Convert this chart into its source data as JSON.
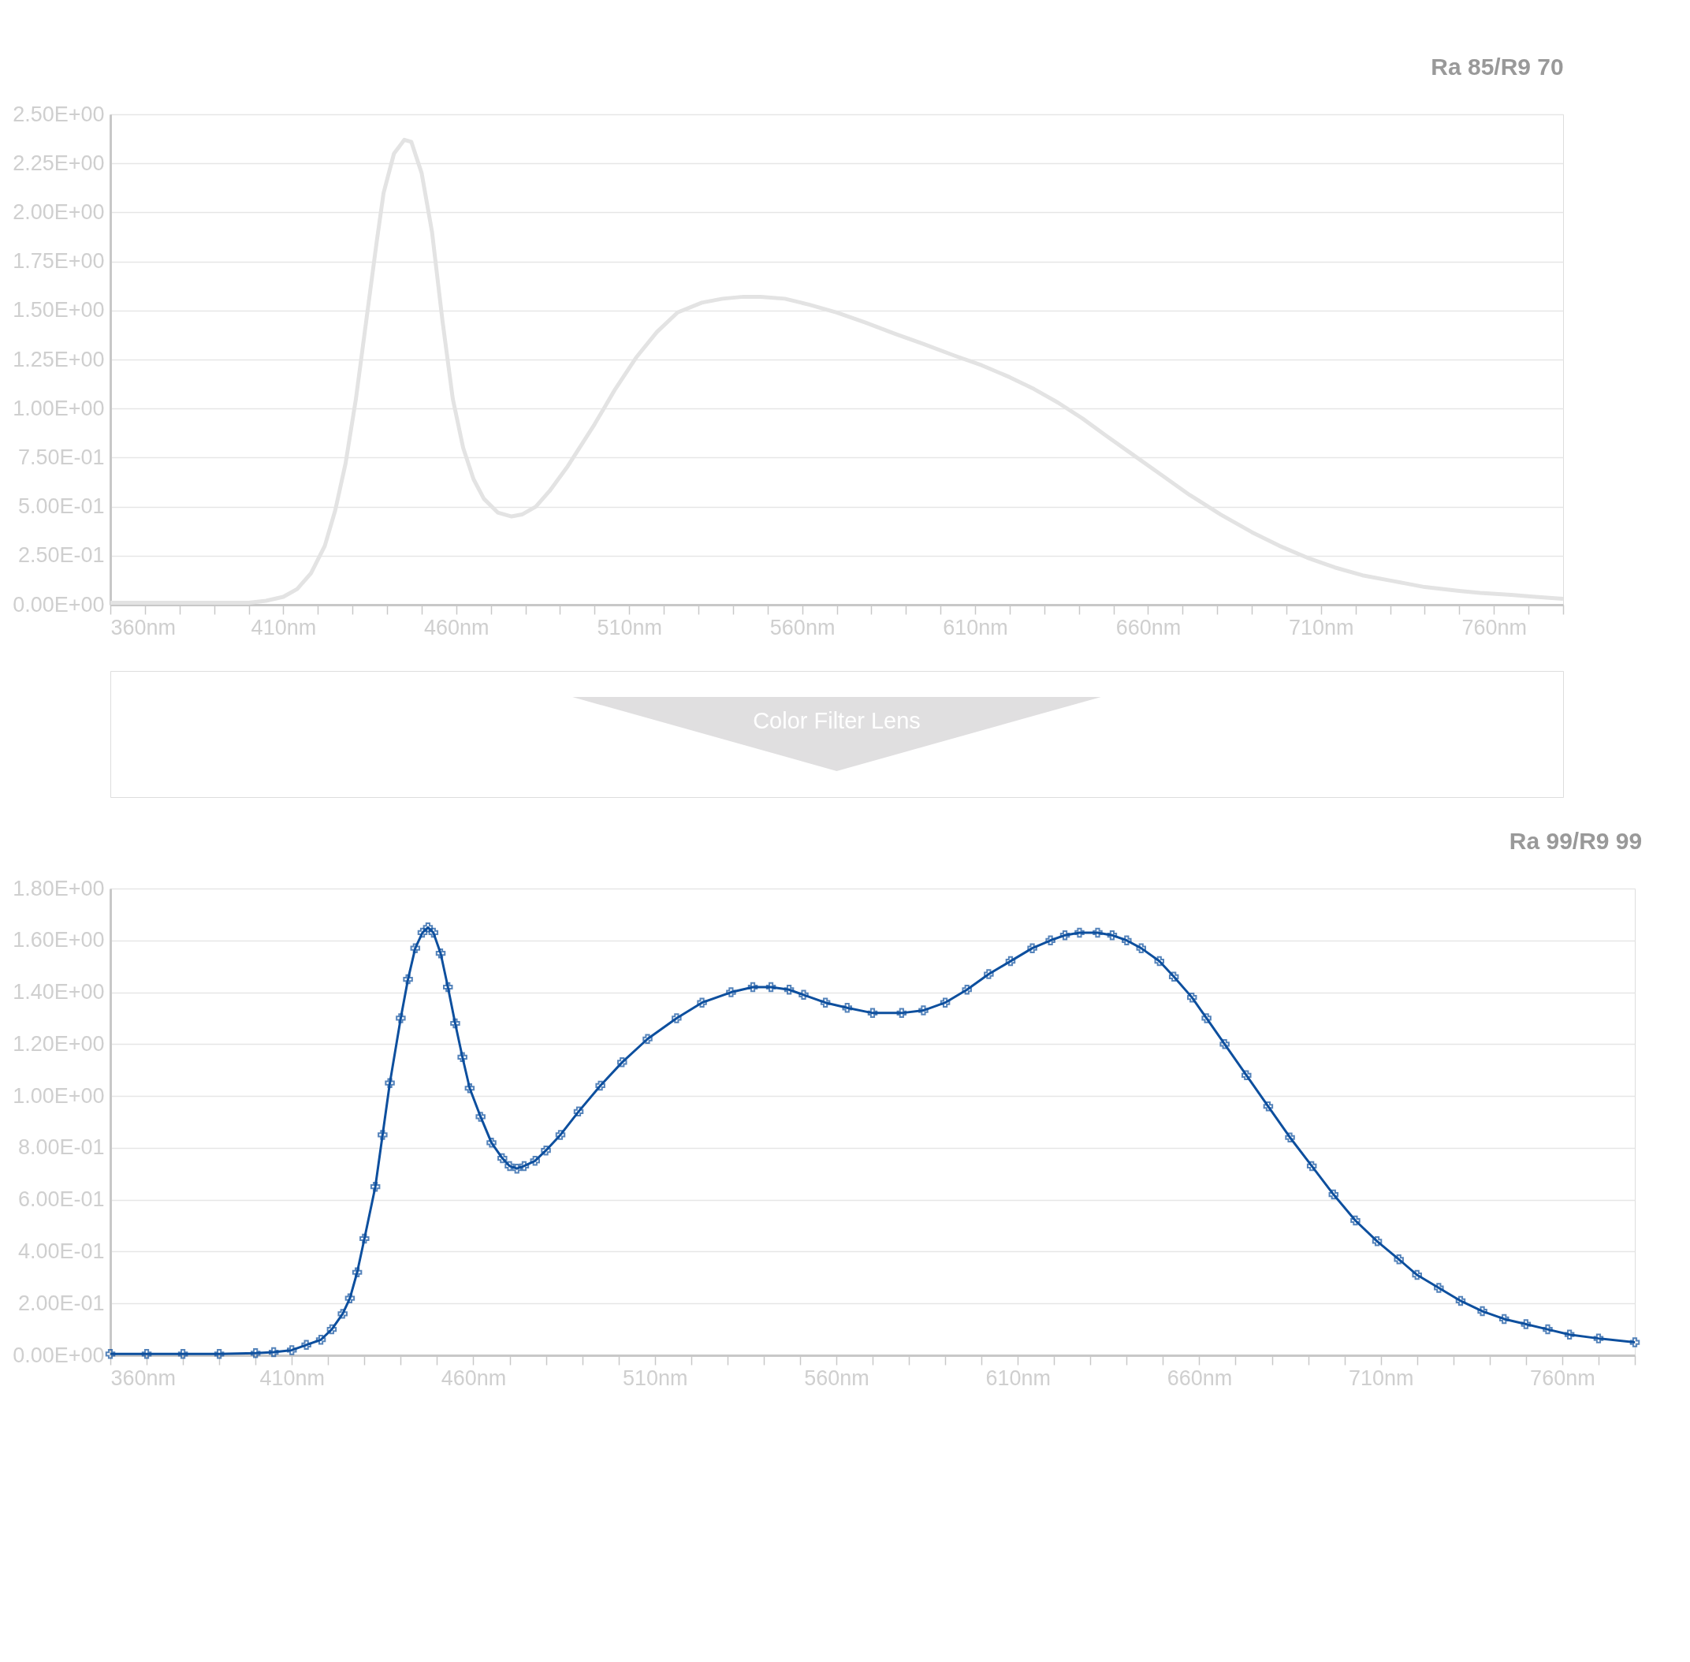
{
  "chart_data": [
    {
      "type": "line",
      "title": "Ra 85/R9 70",
      "series": [
        {
          "color": "#e3e3e3",
          "x": [
            360,
            380,
            400,
            405,
            410,
            414,
            418,
            422,
            425,
            428,
            431,
            434,
            437,
            439,
            442,
            445,
            447,
            450,
            453,
            456,
            459,
            462,
            465,
            468,
            472,
            476,
            479,
            483,
            487,
            492,
            500,
            506,
            512,
            518,
            524,
            531,
            537,
            543,
            548,
            555,
            562,
            570,
            578,
            587,
            595,
            604,
            612,
            620,
            627,
            634,
            641,
            648,
            656,
            664,
            672,
            681,
            690,
            698,
            706,
            714,
            722,
            731,
            740,
            750,
            756,
            765,
            772,
            780
          ],
          "values": [
            0.01,
            0.01,
            0.01,
            0.02,
            0.04,
            0.08,
            0.16,
            0.3,
            0.48,
            0.72,
            1.05,
            1.45,
            1.85,
            2.1,
            2.3,
            2.37,
            2.36,
            2.2,
            1.9,
            1.45,
            1.05,
            0.8,
            0.64,
            0.54,
            0.47,
            0.45,
            0.46,
            0.5,
            0.58,
            0.7,
            0.92,
            1.1,
            1.26,
            1.39,
            1.49,
            1.54,
            1.56,
            1.57,
            1.57,
            1.56,
            1.53,
            1.49,
            1.44,
            1.38,
            1.33,
            1.27,
            1.22,
            1.16,
            1.1,
            1.03,
            0.95,
            0.86,
            0.76,
            0.66,
            0.56,
            0.46,
            0.37,
            0.3,
            0.24,
            0.19,
            0.15,
            0.12,
            0.09,
            0.07,
            0.06,
            0.05,
            0.04,
            0.03
          ]
        }
      ],
      "xlim": [
        360,
        780
      ],
      "xticks": [
        {
          "value": 360,
          "label": "360nm"
        },
        {
          "value": 370,
          "label": null
        },
        {
          "value": 380,
          "label": null
        },
        {
          "value": 390,
          "label": null
        },
        {
          "value": 400,
          "label": null
        },
        {
          "value": 410,
          "label": "410nm"
        },
        {
          "value": 420,
          "label": null
        },
        {
          "value": 430,
          "label": null
        },
        {
          "value": 440,
          "label": null
        },
        {
          "value": 450,
          "label": null
        },
        {
          "value": 460,
          "label": "460nm"
        },
        {
          "value": 470,
          "label": null
        },
        {
          "value": 480,
          "label": null
        },
        {
          "value": 490,
          "label": null
        },
        {
          "value": 500,
          "label": null
        },
        {
          "value": 510,
          "label": "510nm"
        },
        {
          "value": 520,
          "label": null
        },
        {
          "value": 530,
          "label": null
        },
        {
          "value": 540,
          "label": null
        },
        {
          "value": 550,
          "label": null
        },
        {
          "value": 560,
          "label": "560nm"
        },
        {
          "value": 570,
          "label": null
        },
        {
          "value": 580,
          "label": null
        },
        {
          "value": 590,
          "label": null
        },
        {
          "value": 600,
          "label": null
        },
        {
          "value": 610,
          "label": "610nm"
        },
        {
          "value": 620,
          "label": null
        },
        {
          "value": 630,
          "label": null
        },
        {
          "value": 640,
          "label": null
        },
        {
          "value": 650,
          "label": null
        },
        {
          "value": 660,
          "label": "660nm"
        },
        {
          "value": 670,
          "label": null
        },
        {
          "value": 680,
          "label": null
        },
        {
          "value": 690,
          "label": null
        },
        {
          "value": 700,
          "label": null
        },
        {
          "value": 710,
          "label": "710nm"
        },
        {
          "value": 720,
          "label": null
        },
        {
          "value": 730,
          "label": null
        },
        {
          "value": 740,
          "label": null
        },
        {
          "value": 750,
          "label": null
        },
        {
          "value": 760,
          "label": "760nm"
        },
        {
          "value": 770,
          "label": null
        },
        {
          "value": 780,
          "label": null
        }
      ],
      "ylim": [
        0,
        2.5
      ],
      "yticks": [
        {
          "value": 0,
          "label": "0.00E+00"
        },
        {
          "value": 0.25,
          "label": "2.50E-01"
        },
        {
          "value": 0.5,
          "label": "5.00E-01"
        },
        {
          "value": 0.75,
          "label": "7.50E-01"
        },
        {
          "value": 1,
          "label": "1.00E+00"
        },
        {
          "value": 1.25,
          "label": "1.25E+00"
        },
        {
          "value": 1.5,
          "label": "1.50E+00"
        },
        {
          "value": 1.75,
          "label": "1.75E+00"
        },
        {
          "value": 2,
          "label": "2.00E+00"
        },
        {
          "value": 2.25,
          "label": "2.25E+00"
        },
        {
          "value": 2.5,
          "label": "2.50E+00"
        }
      ],
      "grid": "y",
      "legend": false,
      "marker": "none",
      "line_style": "solid"
    },
    {
      "type": "other",
      "annotations": [
        "Color Filter Lens"
      ]
    },
    {
      "type": "line",
      "title": "Ra 99/R9 99",
      "series": [
        {
          "color": "#0d4f9e",
          "x": [
            360,
            370,
            380,
            390,
            400,
            405,
            410,
            414,
            418,
            421,
            424,
            426,
            428,
            430,
            433,
            435,
            437,
            440,
            442,
            444,
            446,
            447.5,
            449,
            451,
            453,
            455,
            457,
            459,
            462,
            465,
            468,
            470,
            472,
            474,
            477,
            480,
            484,
            489,
            495,
            501,
            508,
            516,
            523,
            531,
            537,
            542,
            547,
            551,
            557,
            563,
            570,
            578,
            584,
            590,
            596,
            602,
            608,
            614,
            619,
            623,
            627,
            632,
            636,
            640,
            644,
            649,
            653,
            658,
            662,
            667,
            673,
            679,
            685,
            691,
            697,
            703,
            709,
            715,
            720,
            726,
            732,
            738,
            744,
            750,
            756,
            762,
            770,
            780
          ],
          "values": [
            0.005,
            0.005,
            0.005,
            0.005,
            0.008,
            0.012,
            0.02,
            0.04,
            0.06,
            0.1,
            0.16,
            0.22,
            0.32,
            0.45,
            0.65,
            0.85,
            1.05,
            1.3,
            1.45,
            1.57,
            1.63,
            1.65,
            1.63,
            1.55,
            1.42,
            1.28,
            1.15,
            1.03,
            0.92,
            0.82,
            0.76,
            0.73,
            0.72,
            0.73,
            0.75,
            0.79,
            0.85,
            0.94,
            1.04,
            1.13,
            1.22,
            1.3,
            1.36,
            1.4,
            1.42,
            1.42,
            1.41,
            1.39,
            1.36,
            1.34,
            1.32,
            1.32,
            1.33,
            1.36,
            1.41,
            1.47,
            1.52,
            1.57,
            1.6,
            1.62,
            1.63,
            1.63,
            1.62,
            1.6,
            1.57,
            1.52,
            1.46,
            1.38,
            1.3,
            1.2,
            1.08,
            0.96,
            0.84,
            0.73,
            0.62,
            0.52,
            0.44,
            0.37,
            0.31,
            0.26,
            0.21,
            0.17,
            0.14,
            0.12,
            0.1,
            0.08,
            0.065,
            0.05
          ]
        }
      ],
      "xlim": [
        360,
        780
      ],
      "xticks": [
        {
          "value": 360,
          "label": "360nm"
        },
        {
          "value": 370,
          "label": null
        },
        {
          "value": 380,
          "label": null
        },
        {
          "value": 390,
          "label": null
        },
        {
          "value": 400,
          "label": null
        },
        {
          "value": 410,
          "label": "410nm"
        },
        {
          "value": 420,
          "label": null
        },
        {
          "value": 430,
          "label": null
        },
        {
          "value": 440,
          "label": null
        },
        {
          "value": 450,
          "label": null
        },
        {
          "value": 460,
          "label": "460nm"
        },
        {
          "value": 470,
          "label": null
        },
        {
          "value": 480,
          "label": null
        },
        {
          "value": 490,
          "label": null
        },
        {
          "value": 500,
          "label": null
        },
        {
          "value": 510,
          "label": "510nm"
        },
        {
          "value": 520,
          "label": null
        },
        {
          "value": 530,
          "label": null
        },
        {
          "value": 540,
          "label": null
        },
        {
          "value": 550,
          "label": null
        },
        {
          "value": 560,
          "label": "560nm"
        },
        {
          "value": 570,
          "label": null
        },
        {
          "value": 580,
          "label": null
        },
        {
          "value": 590,
          "label": null
        },
        {
          "value": 600,
          "label": null
        },
        {
          "value": 610,
          "label": "610nm"
        },
        {
          "value": 620,
          "label": null
        },
        {
          "value": 630,
          "label": null
        },
        {
          "value": 640,
          "label": null
        },
        {
          "value": 650,
          "label": null
        },
        {
          "value": 660,
          "label": "660nm"
        },
        {
          "value": 670,
          "label": null
        },
        {
          "value": 680,
          "label": null
        },
        {
          "value": 690,
          "label": null
        },
        {
          "value": 700,
          "label": null
        },
        {
          "value": 710,
          "label": "710nm"
        },
        {
          "value": 720,
          "label": null
        },
        {
          "value": 730,
          "label": null
        },
        {
          "value": 740,
          "label": null
        },
        {
          "value": 750,
          "label": null
        },
        {
          "value": 760,
          "label": "760nm"
        },
        {
          "value": 770,
          "label": null
        },
        {
          "value": 780,
          "label": null
        }
      ],
      "ylim": [
        0,
        1.8
      ],
      "yticks": [
        {
          "value": 0,
          "label": "0.00E+00"
        },
        {
          "value": 0.2,
          "label": "2.00E-01"
        },
        {
          "value": 0.4,
          "label": "4.00E-01"
        },
        {
          "value": 0.6,
          "label": "6.00E-01"
        },
        {
          "value": 0.8,
          "label": "8.00E-01"
        },
        {
          "value": 1,
          "label": "1.00E+00"
        },
        {
          "value": 1.2,
          "label": "1.20E+00"
        },
        {
          "value": 1.4,
          "label": "1.40E+00"
        },
        {
          "value": 1.6,
          "label": "1.60E+00"
        },
        {
          "value": 1.8,
          "label": "1.80E+00"
        }
      ],
      "grid": "y",
      "legend": false,
      "marker": "cross",
      "line_style": "solid"
    }
  ]
}
